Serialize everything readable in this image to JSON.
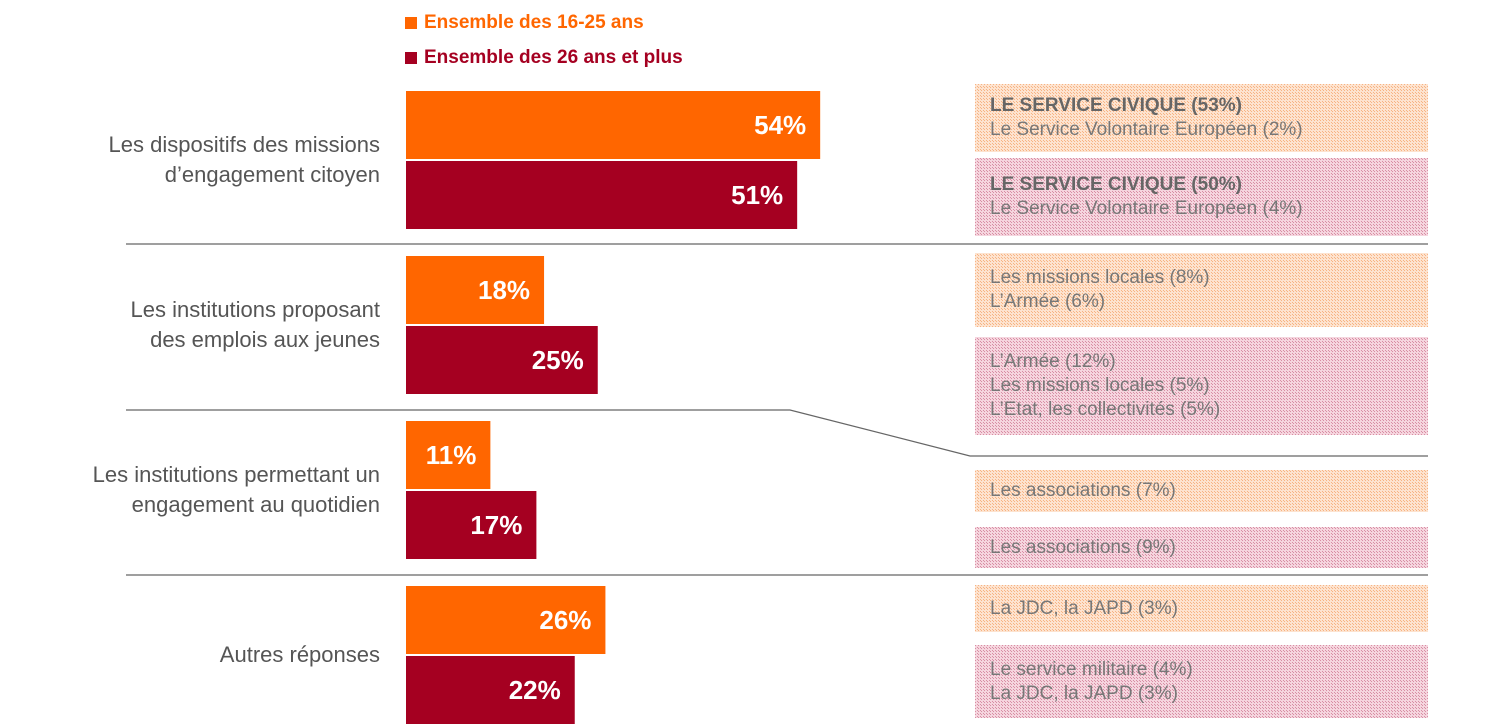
{
  "chart_data": {
    "type": "bar",
    "orientation": "horizontal",
    "categories": [
      "Les dispositifs des missions\nd’engagement citoyen",
      "Les institutions proposant\ndes emplois aux jeunes",
      "Les institutions permettant un\nengagement au quotidien",
      "Autres réponses"
    ],
    "series": [
      {
        "name": "Ensemble des 16-25 ans",
        "color": "#ff6600",
        "values": [
          54,
          18,
          11,
          26
        ],
        "value_labels": [
          "54%",
          "18%",
          "11%",
          "26%"
        ]
      },
      {
        "name": "Ensemble des 26 ans et plus",
        "color": "#a50021",
        "values": [
          51,
          25,
          17,
          22
        ],
        "value_labels": [
          "51%",
          "25%",
          "17%",
          "22%"
        ]
      }
    ],
    "panels": [
      [
        [
          "LE SERVICE CIVIQUE (53%)",
          "Le Service Volontaire Européen (2%)"
        ],
        [
          "LE SERVICE CIVIQUE (50%)",
          "Le Service Volontaire Européen (4%)"
        ]
      ],
      [
        [
          "Les missions locales (8%)",
          "L’Armée (6%)"
        ],
        [
          "L’Armée (12%)",
          "Les missions locales (5%)",
          "L’Etat, les collectivités (5%)"
        ]
      ],
      [
        [
          "Les associations (7%)"
        ],
        [
          "Les associations (9%)"
        ]
      ],
      [
        [
          "La JDC, la JAPD (3%)"
        ],
        [
          "Le service militaire (4%)",
          "La JDC, la JAPD (3%)"
        ]
      ]
    ]
  }
}
